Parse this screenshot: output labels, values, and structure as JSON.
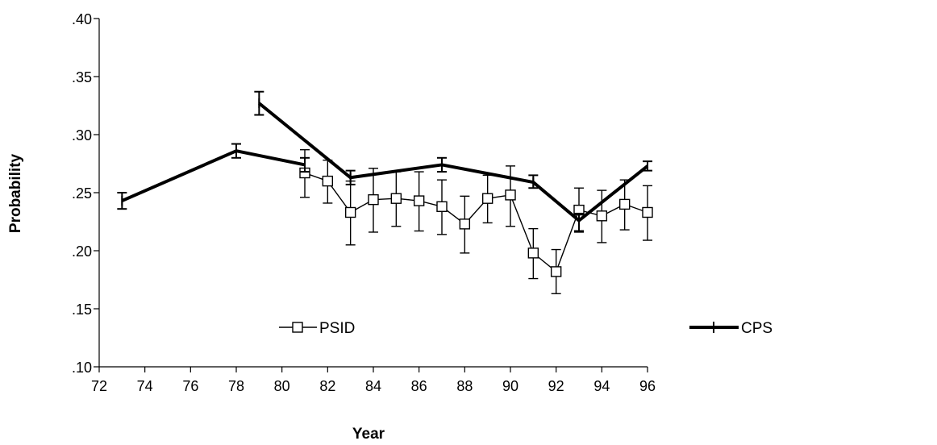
{
  "chart_data": {
    "type": "line",
    "title": "",
    "xlabel": "Year",
    "ylabel": "Probability",
    "xlim": [
      72,
      96
    ],
    "ylim": [
      0.1,
      0.4
    ],
    "xticks": [
      72,
      74,
      76,
      78,
      80,
      82,
      84,
      86,
      88,
      90,
      92,
      94,
      96
    ],
    "xtick_labels": [
      "72",
      "74",
      "76",
      "78",
      "80",
      "82",
      "84",
      "86",
      "88",
      "90",
      "92",
      "94",
      "96"
    ],
    "yticks": [
      0.1,
      0.15,
      0.2,
      0.25,
      0.3,
      0.35,
      0.4
    ],
    "ytick_labels": [
      ".10",
      ".15",
      ".20",
      ".25",
      ".30",
      ".35",
      ".40"
    ],
    "grid": false,
    "legend_placement": "bottom",
    "series": [
      {
        "name": "PSID",
        "color": "#000000",
        "marker": "open-square",
        "points": [
          {
            "x": 81,
            "y": 0.267,
            "lo": 0.246,
            "hi": 0.287
          },
          {
            "x": 82,
            "y": 0.26,
            "lo": 0.241,
            "hi": 0.278
          },
          {
            "x": 83,
            "y": 0.233,
            "lo": 0.205,
            "hi": 0.26
          },
          {
            "x": 84,
            "y": 0.244,
            "lo": 0.216,
            "hi": 0.271
          },
          {
            "x": 85,
            "y": 0.245,
            "lo": 0.221,
            "hi": 0.268
          },
          {
            "x": 86,
            "y": 0.243,
            "lo": 0.217,
            "hi": 0.268
          },
          {
            "x": 87,
            "y": 0.238,
            "lo": 0.214,
            "hi": 0.261
          },
          {
            "x": 88,
            "y": 0.223,
            "lo": 0.198,
            "hi": 0.247
          },
          {
            "x": 89,
            "y": 0.245,
            "lo": 0.224,
            "hi": 0.265
          },
          {
            "x": 90,
            "y": 0.248,
            "lo": 0.221,
            "hi": 0.273
          },
          {
            "x": 91,
            "y": 0.198,
            "lo": 0.176,
            "hi": 0.219
          },
          {
            "x": 92,
            "y": 0.182,
            "lo": 0.163,
            "hi": 0.201
          },
          {
            "x": 93,
            "y": 0.235,
            "lo": 0.216,
            "hi": 0.254
          },
          {
            "x": 94,
            "y": 0.23,
            "lo": 0.207,
            "hi": 0.252
          },
          {
            "x": 95,
            "y": 0.24,
            "lo": 0.218,
            "hi": 0.261
          },
          {
            "x": 96,
            "y": 0.233,
            "lo": 0.209,
            "hi": 0.256
          }
        ]
      },
      {
        "name": "CPS",
        "color": "#000000",
        "marker": "plus",
        "segments": [
          [
            {
              "x": 73,
              "y": 0.243,
              "lo": 0.236,
              "hi": 0.25
            },
            {
              "x": 78,
              "y": 0.286,
              "lo": 0.28,
              "hi": 0.292
            },
            {
              "x": 81,
              "y": 0.274,
              "lo": 0.268,
              "hi": 0.28
            }
          ],
          [
            {
              "x": 79,
              "y": 0.327,
              "lo": 0.317,
              "hi": 0.337
            },
            {
              "x": 83,
              "y": 0.263,
              "lo": 0.257,
              "hi": 0.269
            },
            {
              "x": 87,
              "y": 0.274,
              "lo": 0.268,
              "hi": 0.28
            },
            {
              "x": 91,
              "y": 0.259,
              "lo": 0.254,
              "hi": 0.265
            },
            {
              "x": 93,
              "y": 0.226,
              "lo": 0.217,
              "hi": 0.232
            },
            {
              "x": 96,
              "y": 0.273,
              "lo": 0.269,
              "hi": 0.277
            }
          ]
        ]
      }
    ]
  }
}
